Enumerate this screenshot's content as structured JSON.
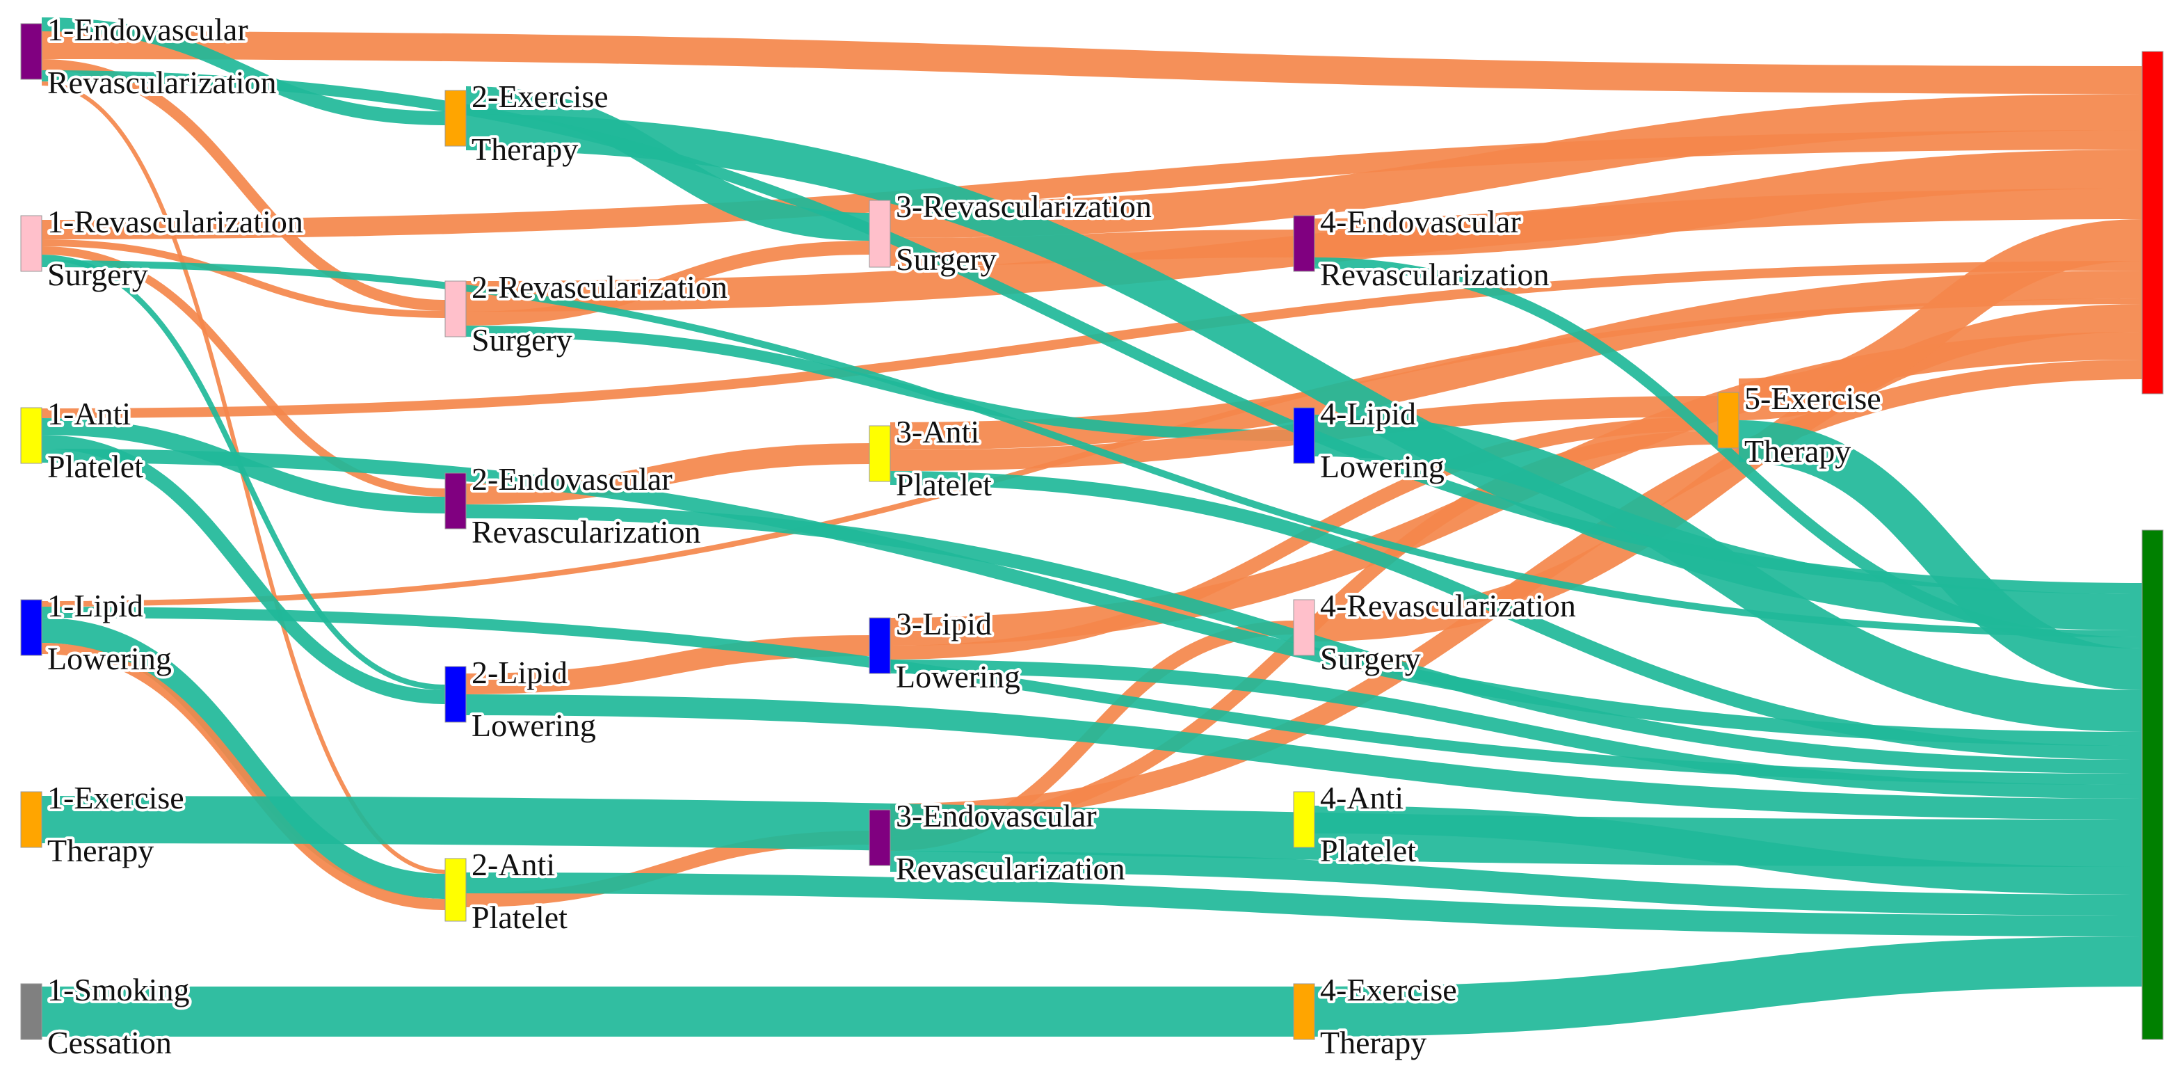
{
  "chart_data": {
    "type": "sankey",
    "nodes": [
      {
        "label": [
          "1-Endovascular",
          "Revascularization"
        ],
        "color": "#800080"
      },
      {
        "label": [
          "1-Revascularization",
          "Surgery"
        ],
        "color": "#ffc0cb"
      },
      {
        "label": [
          "1-Anti",
          "Platelet"
        ],
        "color": "#ffff00"
      },
      {
        "label": [
          "1-Lipid",
          "Lowering"
        ],
        "color": "#0000ff"
      },
      {
        "label": [
          "1-Exercise",
          "Therapy"
        ],
        "color": "#ffa500"
      },
      {
        "label": [
          "1-Smoking",
          "Cessation"
        ],
        "color": "#808080"
      },
      {
        "label": [
          "2-Exercise",
          "Therapy"
        ],
        "color": "#ffa500"
      },
      {
        "label": [
          "2-Revascularization",
          "Surgery"
        ],
        "color": "#ffc0cb"
      },
      {
        "label": [
          "2-Endovascular",
          "Revascularization"
        ],
        "color": "#800080"
      },
      {
        "label": [
          "2-Lipid",
          "Lowering"
        ],
        "color": "#0000ff"
      },
      {
        "label": [
          "2-Anti",
          "Platelet"
        ],
        "color": "#ffff00"
      },
      {
        "label": [
          "3-Revascularization",
          "Surgery"
        ],
        "color": "#ffc0cb"
      },
      {
        "label": [
          "3-Anti",
          "Platelet"
        ],
        "color": "#ffff00"
      },
      {
        "label": [
          "3-Lipid",
          "Lowering"
        ],
        "color": "#0000ff"
      },
      {
        "label": [
          "3-Endovascular",
          "Revascularization"
        ],
        "color": "#800080"
      },
      {
        "label": [
          "4-Endovascular",
          "Revascularization"
        ],
        "color": "#800080"
      },
      {
        "label": [
          "4-Lipid",
          "Lowering"
        ],
        "color": "#0000ff"
      },
      {
        "label": [
          "4-Revascularization",
          "Surgery"
        ],
        "color": "#ffc0cb"
      },
      {
        "label": [
          "4-Anti",
          "Platelet"
        ],
        "color": "#ffff00"
      },
      {
        "label": [
          "4-Exercise",
          "Therapy"
        ],
        "color": "#ffa500"
      },
      {
        "label": [
          "5-Exercise",
          "Therapy"
        ],
        "color": "#ffa500"
      },
      {
        "label": null,
        "color": "#ff0000"
      },
      {
        "label": null,
        "color": "#008000"
      }
    ],
    "links": [
      {
        "source": 0,
        "target": 21,
        "value": 20,
        "color": "#f4874b"
      },
      {
        "source": 1,
        "target": 21,
        "value": 14,
        "color": "#f4874b"
      },
      {
        "source": 2,
        "target": 21,
        "value": 7,
        "color": "#f4874b"
      },
      {
        "source": 3,
        "target": 21,
        "value": 4,
        "color": "#f4874b"
      },
      {
        "source": 7,
        "target": 21,
        "value": 22,
        "color": "#f4874b"
      },
      {
        "source": 11,
        "target": 21,
        "value": 26,
        "color": "#f4874b"
      },
      {
        "source": 15,
        "target": 21,
        "value": 28,
        "color": "#f4874b"
      },
      {
        "source": 12,
        "target": 21,
        "value": 20,
        "color": "#f4874b"
      },
      {
        "source": 13,
        "target": 21,
        "value": 20,
        "color": "#f4874b"
      },
      {
        "source": 17,
        "target": 21,
        "value": 20,
        "color": "#f4874b"
      },
      {
        "source": 20,
        "target": 21,
        "value": 30,
        "color": "#f4874b"
      },
      {
        "source": 14,
        "target": 21,
        "value": 14,
        "color": "#f4874b"
      },
      {
        "source": 0,
        "target": 6,
        "value": 10,
        "color": "#1fb899"
      },
      {
        "source": 0,
        "target": 7,
        "value": 8,
        "color": "#f4874b"
      },
      {
        "source": 0,
        "target": 10,
        "value": 3,
        "color": "#f4874b"
      },
      {
        "source": 1,
        "target": 7,
        "value": 5,
        "color": "#f4874b"
      },
      {
        "source": 1,
        "target": 8,
        "value": 6,
        "color": "#f4874b"
      },
      {
        "source": 1,
        "target": 9,
        "value": 4,
        "color": "#1fb899"
      },
      {
        "source": 2,
        "target": 8,
        "value": 12,
        "color": "#1fb899"
      },
      {
        "source": 2,
        "target": 9,
        "value": 10,
        "color": "#1fb899"
      },
      {
        "source": 3,
        "target": 10,
        "value": 18,
        "color": "#1fb899"
      },
      {
        "source": 3,
        "target": 10,
        "value": 8,
        "color": "#f4874b"
      },
      {
        "source": 6,
        "target": 11,
        "value": 20,
        "color": "#1fb899"
      },
      {
        "source": 7,
        "target": 11,
        "value": 10,
        "color": "#f4874b"
      },
      {
        "source": 7,
        "target": 16,
        "value": 8,
        "color": "#1fb899"
      },
      {
        "source": 8,
        "target": 12,
        "value": 15,
        "color": "#f4874b"
      },
      {
        "source": 9,
        "target": 13,
        "value": 15,
        "color": "#f4874b"
      },
      {
        "source": 10,
        "target": 14,
        "value": 10,
        "color": "#f4874b"
      },
      {
        "source": 11,
        "target": 15,
        "value": 20,
        "color": "#f4874b"
      },
      {
        "source": 12,
        "target": 20,
        "value": 15,
        "color": "#f4874b"
      },
      {
        "source": 13,
        "target": 20,
        "value": 10,
        "color": "#f4874b"
      },
      {
        "source": 14,
        "target": 17,
        "value": 10,
        "color": "#f4874b"
      },
      {
        "source": 14,
        "target": 20,
        "value": 10,
        "color": "#f4874b"
      },
      {
        "source": 5,
        "target": 19,
        "value": 36,
        "color": "#1fb899"
      },
      {
        "source": 6,
        "target": 22,
        "value": 26,
        "color": "#1fb899"
      },
      {
        "source": 4,
        "target": 22,
        "value": 34,
        "color": "#1fb899"
      },
      {
        "source": 19,
        "target": 22,
        "value": 36,
        "color": "#1fb899"
      },
      {
        "source": 10,
        "target": 22,
        "value": 15,
        "color": "#1fb899"
      },
      {
        "source": 9,
        "target": 22,
        "value": 15,
        "color": "#1fb899"
      },
      {
        "source": 8,
        "target": 22,
        "value": 10,
        "color": "#1fb899"
      },
      {
        "source": 16,
        "target": 22,
        "value": 30,
        "color": "#1fb899"
      },
      {
        "source": 18,
        "target": 22,
        "value": 20,
        "color": "#1fb899"
      },
      {
        "source": 14,
        "target": 22,
        "value": 15,
        "color": "#1fb899"
      },
      {
        "source": 13,
        "target": 22,
        "value": 10,
        "color": "#1fb899"
      },
      {
        "source": 12,
        "target": 22,
        "value": 10,
        "color": "#1fb899"
      },
      {
        "source": 2,
        "target": 22,
        "value": 10,
        "color": "#1fb899"
      },
      {
        "source": 3,
        "target": 22,
        "value": 8,
        "color": "#1fb899"
      },
      {
        "source": 0,
        "target": 22,
        "value": 8,
        "color": "#1fb899"
      },
      {
        "source": 1,
        "target": 22,
        "value": 5,
        "color": "#1fb899"
      },
      {
        "source": 15,
        "target": 22,
        "value": 8,
        "color": "#1fb899"
      },
      {
        "source": 20,
        "target": 22,
        "value": 30,
        "color": "#1fb899"
      }
    ]
  }
}
